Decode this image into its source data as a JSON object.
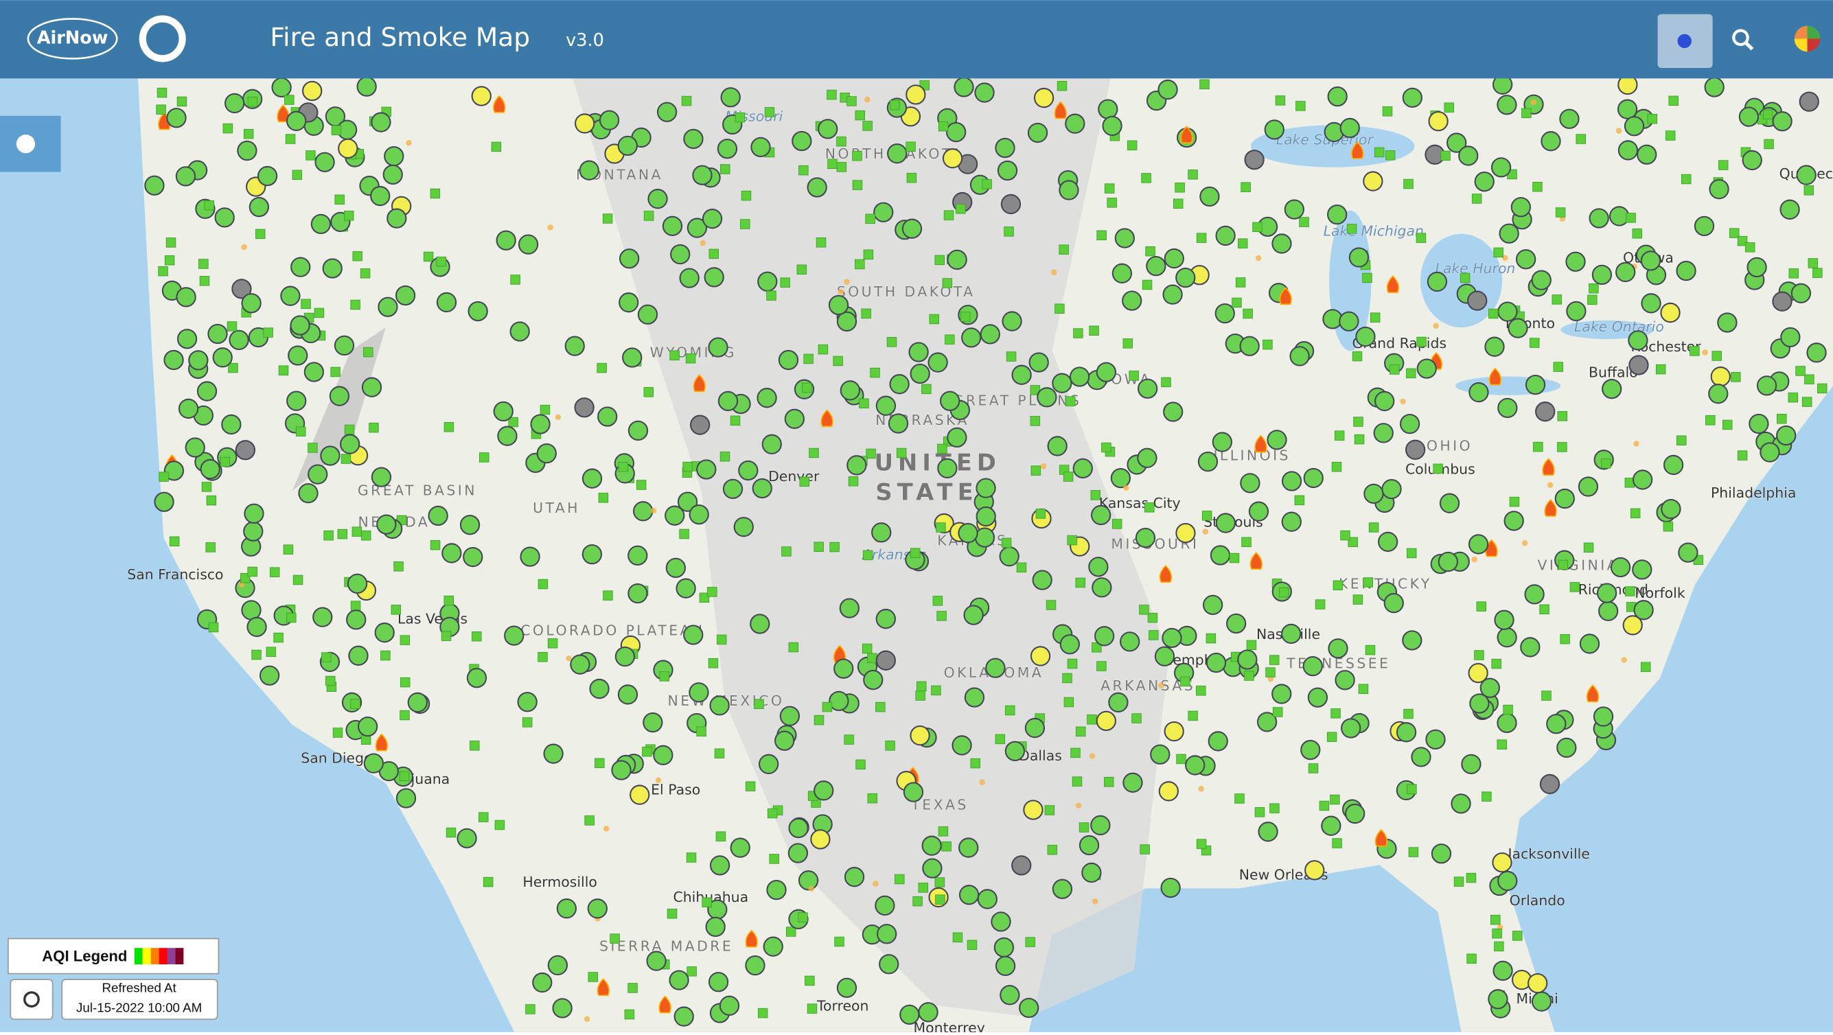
{
  "header": {
    "logo_text": "AirNow",
    "title": "Fire and Smoke Map",
    "version": "v3.0"
  },
  "map_labels": [
    "MONTANA",
    "NORTH DAKOTA",
    "SOUTH DAKOTA",
    "WYOMING",
    "NEBRASKA",
    "GREAT PLAINS",
    "UNITED",
    "STATES",
    "KANSAS",
    "MISSOURI",
    "OKLAHOMA",
    "TEXAS",
    "ARKANSAS",
    "NEW MEXICO",
    "UTAH",
    "NEVADA",
    "GREAT BASIN",
    "COLORADO PLATEAU",
    "IOWA",
    "ILLINOIS",
    "KENTUCKY",
    "TENNESSEE",
    "VIRGINIA",
    "OHIO",
    "Denver",
    "Kansas City",
    "St. Louis",
    "Memphis",
    "Nashville",
    "Dallas",
    "New Orleans",
    "Jacksonville",
    "Orlando",
    "Miami",
    "Richmond",
    "Norfolk",
    "Philadelphia",
    "Toronto",
    "Ottawa",
    "Quebec",
    "Buffalo",
    "Rochester",
    "Grand Rapids",
    "Columbus",
    "Hermosillo",
    "Chihuahua",
    "Torreon",
    "Monterrey",
    "San Diego",
    "Tijuana",
    "El Paso",
    "Las Vegas",
    "San Francisco",
    "Lake Superior",
    "Lake Michigan",
    "Lake Huron",
    "Lake Ontario",
    "Missouri",
    "Arkansas",
    "SIERRA MADRE"
  ],
  "legend": {
    "title": "AQI Legend",
    "refreshed_label": "Refreshed At",
    "refreshed_time": "Jul-15-2022 10:00 AM"
  }
}
